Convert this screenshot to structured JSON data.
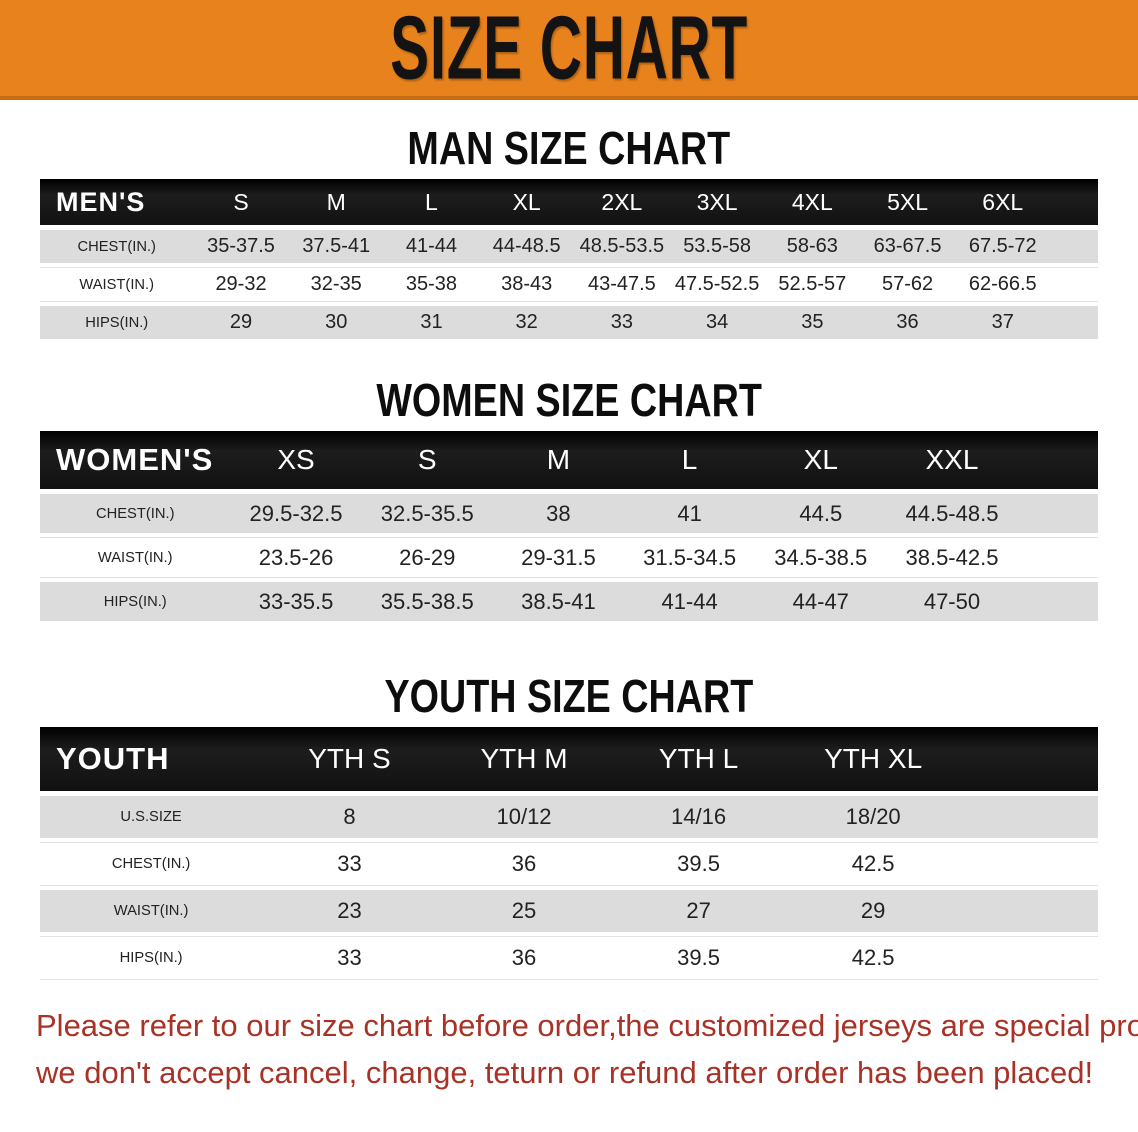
{
  "banner": {
    "title": "SIZE CHART"
  },
  "colors": {
    "banner_bg": "#E8821C",
    "banner_text": "#131313",
    "row_gray": "#DCDCDC",
    "footer_red": "#A93226",
    "header_bar": "#151515"
  },
  "sections": [
    {
      "title": "MAN SIZE CHART",
      "header_label": "MEN'S",
      "columns": [
        "S",
        "M",
        "L",
        "XL",
        "2XL",
        "3XL",
        "4XL",
        "5XL",
        "6XL"
      ],
      "rows": [
        {
          "label": "CHEST(IN.)",
          "values": [
            "35-37.5",
            "37.5-41",
            "41-44",
            "44-48.5",
            "48.5-53.5",
            "53.5-58",
            "58-63",
            "63-67.5",
            "67.5-72"
          ]
        },
        {
          "label": "WAIST(IN.)",
          "values": [
            "29-32",
            "32-35",
            "35-38",
            "38-43",
            "43-47.5",
            "47.5-52.5",
            "52.5-57",
            "57-62",
            "62-66.5"
          ]
        },
        {
          "label": "HIPS(IN.)",
          "values": [
            "29",
            "30",
            "31",
            "32",
            "33",
            "34",
            "35",
            "36",
            "37"
          ]
        }
      ]
    },
    {
      "title": "WOMEN SIZE CHART",
      "header_label": "WOMEN'S",
      "columns": [
        "XS",
        "S",
        "M",
        "L",
        "XL",
        "XXL"
      ],
      "rows": [
        {
          "label": "CHEST(IN.)",
          "values": [
            "29.5-32.5",
            "32.5-35.5",
            "38",
            "41",
            "44.5",
            "44.5-48.5"
          ]
        },
        {
          "label": "WAIST(IN.)",
          "values": [
            "23.5-26",
            "26-29",
            "29-31.5",
            "31.5-34.5",
            "34.5-38.5",
            "38.5-42.5"
          ]
        },
        {
          "label": "HIPS(IN.)",
          "values": [
            "33-35.5",
            "35.5-38.5",
            "38.5-41",
            "41-44",
            "44-47",
            "47-50"
          ]
        }
      ]
    },
    {
      "title": "YOUTH SIZE CHART",
      "header_label": "YOUTH",
      "columns": [
        "YTH S",
        "YTH M",
        "YTH L",
        "YTH XL"
      ],
      "rows": [
        {
          "label": "U.S.SIZE",
          "values": [
            "8",
            "10/12",
            "14/16",
            "18/20"
          ]
        },
        {
          "label": "CHEST(IN.)",
          "values": [
            "33",
            "36",
            "39.5",
            "42.5"
          ]
        },
        {
          "label": "WAIST(IN.)",
          "values": [
            "23",
            "25",
            "27",
            "29"
          ]
        },
        {
          "label": "HIPS(IN.)",
          "values": [
            "33",
            "36",
            "39.5",
            "42.5"
          ]
        }
      ]
    }
  ],
  "footer": {
    "line1": "Please refer to our size chart before order,the customized jerseys are special products,",
    "line2": "we don't accept cancel, change, teturn or refund after order has been placed!"
  }
}
